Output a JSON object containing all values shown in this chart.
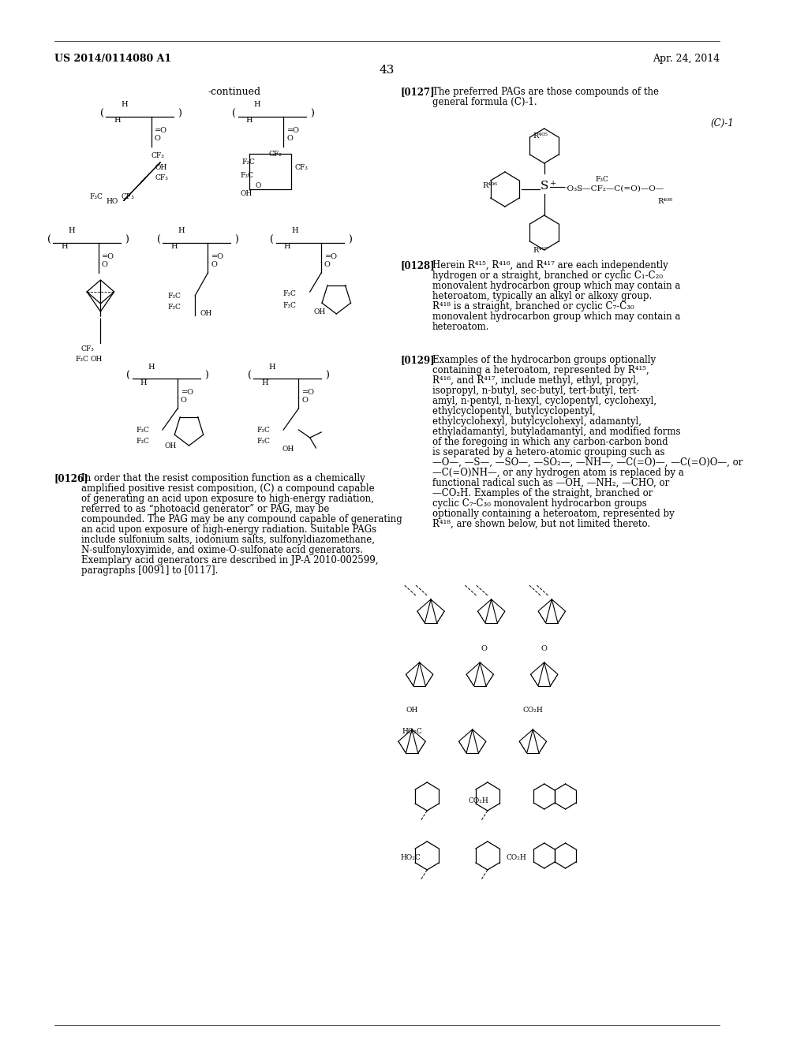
{
  "page_header_left": "US 2014/0114080 A1",
  "page_header_right": "Apr. 24, 2014",
  "page_number": "43",
  "background_color": "#ffffff",
  "text_color": "#000000",
  "continued_label": "-continued",
  "paragraph_0127_label": "[0127]",
  "paragraph_0127_text": "The preferred PAGs are those compounds of the general formula (C)-1.",
  "formula_label": "(C)-1",
  "paragraph_0128_label": "[0128]",
  "paragraph_0128_text": "Herein R⁴¹⁵, R⁴¹⁶, and R⁴¹⁷ are each independently hydrogen or a straight, branched or cyclic C₁-C₂₀ monovalent hydrocarbon group which may contain a heteroatom, typically an alkyl or alkoxy group. R⁴¹⁸ is a straight, branched or cyclic C₇-C₃₀ monovalent hydrocarbon group which may contain a heteroatom.",
  "paragraph_0129_label": "[0129]",
  "paragraph_0129_text": "Examples of the hydrocarbon groups optionally containing a heteroatom, represented by R⁴¹⁵, R⁴¹⁶, and R⁴¹⁷, include methyl, ethyl, propyl, isopropyl, n-butyl, sec-butyl, tert-butyl, tert-amyl, n-pentyl, n-hexyl, cyclopentyl, cyclohexyl, ethylcyclopentyl, butylcyclopentyl, ethylcyclohexyl, butylcyclohexyl, adamantyl, ethyladamantyl, butyladamantyl, and modified forms of the foregoing in which any carbon-carbon bond is separated by a hetero-atomic grouping such as —O—, —S—, —SO—, —SO₂—, —NH—, —C(=O)—, —C(=O)O—, or —C(=O)NH—, or any hydrogen atom is replaced by a functional radical such as —OH, —NH₂, —CHO, or —CO₂H. Examples of the straight, branched or cyclic C₇-C₃₀ monovalent hydrocarbon groups optionally containing a heteroatom, represented by R⁴¹⁸, are shown below, but not limited thereto.",
  "paragraph_0126_label": "[0126]",
  "paragraph_0126_text": "In order that the resist composition function as a chemically amplified positive resist composition, (C) a compound capable of generating an acid upon exposure to high-energy radiation, referred to as “photoacid generator” or PAG, may be compounded. The PAG may be any compound capable of generating an acid upon exposure of high-energy radiation. Suitable PAGs include sulfonium salts, iodonium salts, sulfonyldiazomethane, N-sulfonyloxyimide, and oxime-O-sulfonate acid generators. Exemplary acid generators are described in JP-A 2010-002599, paragraphs [0091] to [0117]."
}
